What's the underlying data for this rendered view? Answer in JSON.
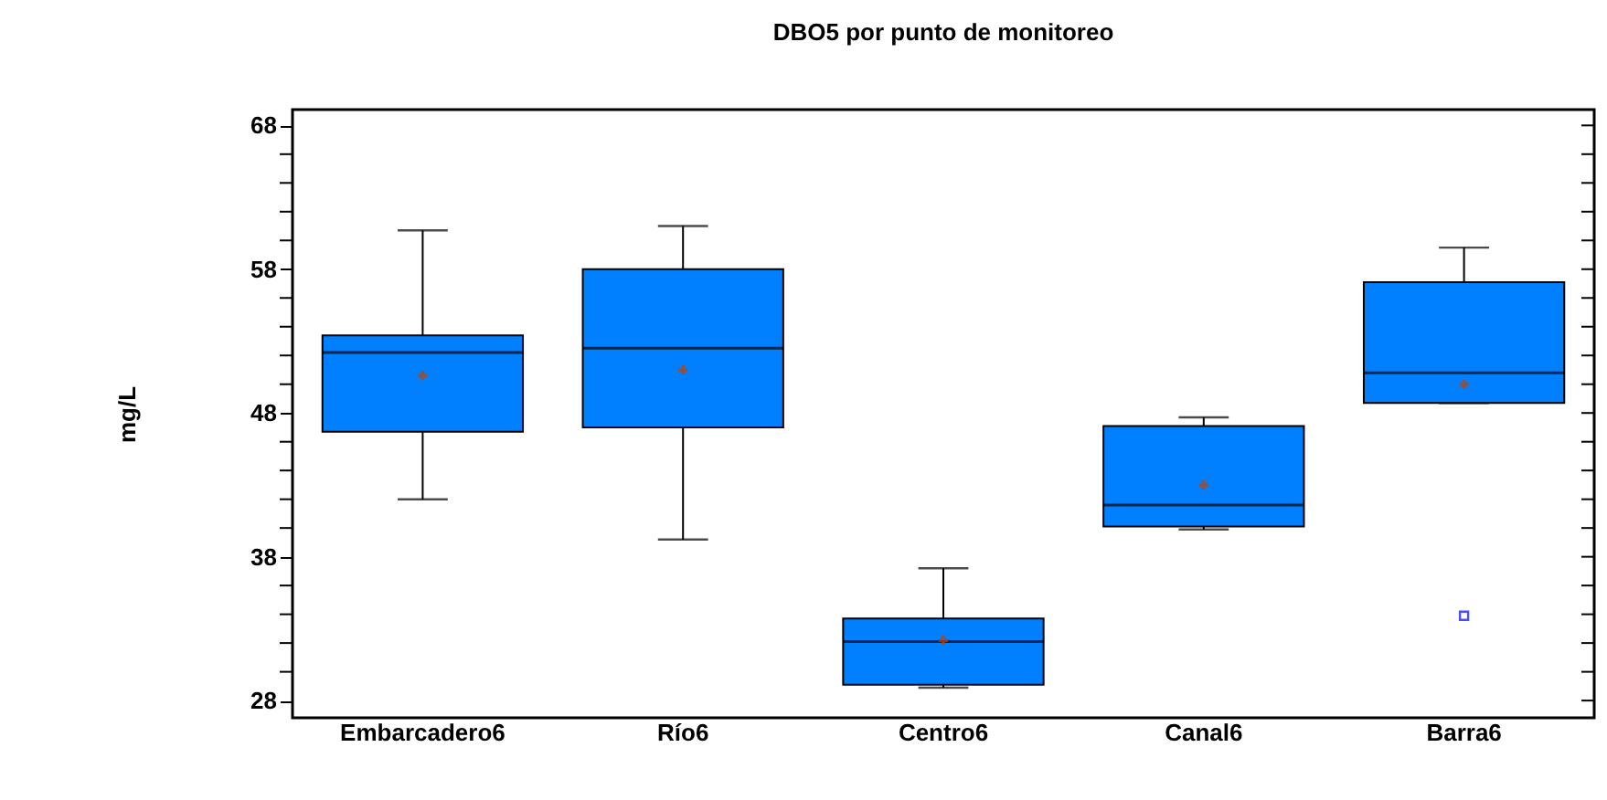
{
  "chart_data": {
    "type": "box",
    "title": "DBO5 por punto de monitoreo",
    "ylabel": "mg/L",
    "categories": [
      "Embarcadero6",
      "Río6",
      "Centro6",
      "Canal6",
      "Barra6"
    ],
    "series": [
      {
        "color": "#0080ff",
        "boxes": [
          {
            "low": 42.0,
            "q1": 46.7,
            "median": 52.2,
            "q3": 53.4,
            "high": 60.7,
            "mean": 50.6
          },
          {
            "low": 39.2,
            "q1": 47.0,
            "median": 52.5,
            "q3": 58.0,
            "high": 61.0,
            "mean": 51.0
          },
          {
            "low": 28.9,
            "q1": 29.1,
            "median": 32.1,
            "q3": 33.7,
            "high": 37.2,
            "mean": 32.2
          },
          {
            "low": 39.9,
            "q1": 40.1,
            "median": 41.6,
            "q3": 47.1,
            "high": 47.7,
            "mean": 43.0
          },
          {
            "low": 48.7,
            "q1": 48.7,
            "median": 50.8,
            "q3": 57.1,
            "high": 59.5,
            "mean": 50.0,
            "outliers": [
              33.9
            ]
          }
        ]
      }
    ],
    "ylim": [
      26.8,
      69.1
    ],
    "yticks": [
      28,
      {
        "value": 30,
        "label": null
      },
      {
        "value": 32,
        "label": null
      },
      {
        "value": 34,
        "label": null
      },
      {
        "value": 36,
        "label": null
      },
      38,
      {
        "value": 40,
        "label": null
      },
      {
        "value": 42,
        "label": null
      },
      {
        "value": 44,
        "label": null
      },
      {
        "value": 46,
        "label": null
      },
      48,
      {
        "value": 50,
        "label": null
      },
      {
        "value": 52,
        "label": null
      },
      {
        "value": 54,
        "label": null
      },
      {
        "value": 56,
        "label": null
      },
      58,
      {
        "value": 60,
        "label": null
      },
      {
        "value": 62,
        "label": null
      },
      {
        "value": 64,
        "label": null
      },
      {
        "value": 66,
        "label": null
      },
      68
    ],
    "grid": false,
    "legend": false,
    "marker": "cross"
  }
}
